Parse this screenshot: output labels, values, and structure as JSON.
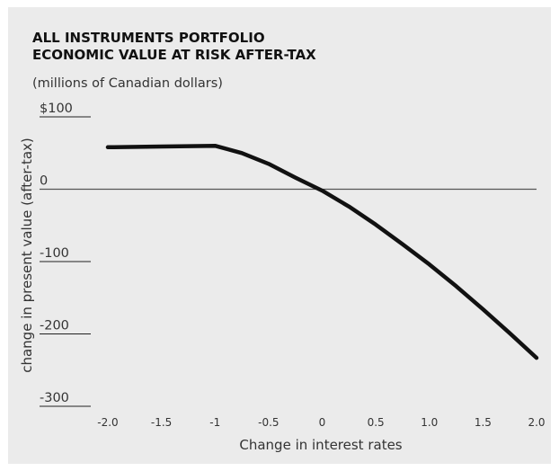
{
  "chart_data": {
    "type": "line",
    "title_lines": [
      "ALL INSTRUMENTS PORTFOLIO",
      "ECONOMIC VALUE AT RISK AFTER-TAX"
    ],
    "subtitle": "(millions of Canadian dollars)",
    "xlabel": "Change in interest rates",
    "ylabel": "change in present value (after-tax)",
    "x_ticks": [
      "-2.0",
      "-1.5",
      "-1",
      "-0.5",
      "0",
      "0.5",
      "1.0",
      "1.5",
      "2.0"
    ],
    "x_tick_values": [
      -2.0,
      -1.5,
      -1.0,
      -0.5,
      0,
      0.5,
      1.0,
      1.5,
      2.0
    ],
    "y_ticks": [
      "$100",
      "0",
      "-100",
      "-200",
      "-300"
    ],
    "y_tick_values": [
      100,
      0,
      -100,
      -200,
      -300
    ],
    "xlim": [
      -2.0,
      2.0
    ],
    "ylim": [
      -300,
      100
    ],
    "series": [
      {
        "x": [
          -2.0,
          -1.5,
          -1.0,
          -0.75,
          -0.5,
          -0.25,
          0,
          0.25,
          0.5,
          0.75,
          1.0,
          1.25,
          1.5,
          1.75,
          2.0
        ],
        "y": [
          58,
          59,
          60,
          50,
          35,
          16,
          -2,
          -24,
          -49,
          -76,
          -104,
          -134,
          -166,
          -199,
          -233
        ]
      }
    ],
    "line_color": "#111111",
    "zero_line_color": "#555555",
    "panel_color": "#ebebeb"
  }
}
